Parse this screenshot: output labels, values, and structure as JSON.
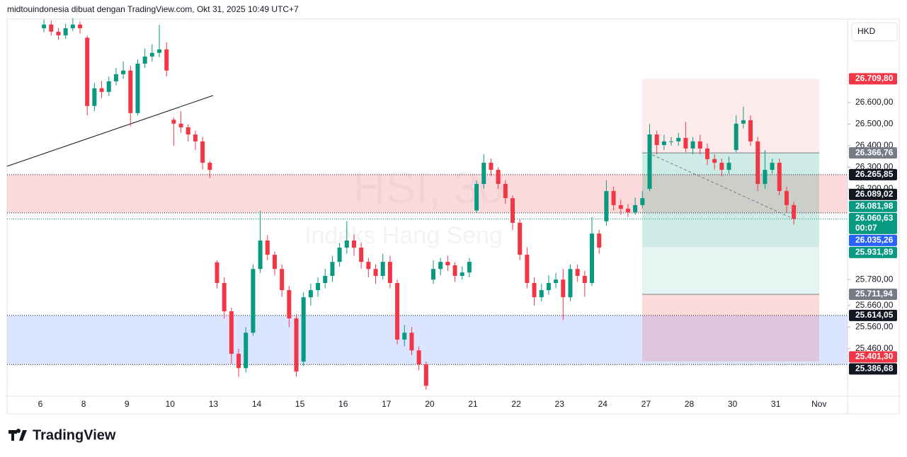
{
  "chart_data": {
    "type": "candlestick",
    "attribution": "midtouindonesia dibuat dengan TradingView.com, Okt 31, 2025 10:49 UTC+7",
    "currency": "HKD",
    "watermark": {
      "symbol": "HSI, 30",
      "name": "Indeks Hang Seng"
    },
    "logo": "TradingView",
    "up_color": "#089981",
    "down_color": "#f23645",
    "grid": false,
    "categories": [
      "6",
      null,
      null,
      null,
      null,
      null,
      "8",
      null,
      null,
      null,
      null,
      null,
      "9",
      null,
      null,
      null,
      null,
      null,
      "10",
      null,
      null,
      null,
      null,
      null,
      "13",
      null,
      null,
      null,
      null,
      null,
      "14",
      null,
      null,
      null,
      null,
      null,
      "15",
      null,
      null,
      null,
      null,
      null,
      "16",
      null,
      null,
      null,
      null,
      null,
      "17",
      null,
      null,
      null,
      null,
      null,
      "20",
      null,
      null,
      null,
      null,
      null,
      "21",
      null,
      null,
      null,
      null,
      null,
      "22",
      null,
      null,
      null,
      null,
      null,
      "23",
      null,
      null,
      null,
      null,
      null,
      "24",
      null,
      null,
      null,
      null,
      null,
      "27",
      null,
      null,
      null,
      null,
      null,
      "28",
      null,
      null,
      null,
      null,
      null,
      "30",
      null,
      null,
      null,
      null,
      null,
      "31",
      null,
      null,
      null,
      null,
      null,
      "Nov",
      null,
      null,
      null
    ],
    "open": [
      26944,
      26961,
      26928,
      26911,
      26944,
      26961,
      26900,
      26584,
      26666,
      26649,
      26698,
      26731,
      26748,
      26551,
      26780,
      26813,
      26830,
      26846,
      26520,
      26502,
      26485,
      26452,
      26420,
      26321,
      25860,
      25764,
      25633,
      25436,
      25370,
      25534,
      25829,
      25961,
      25895,
      25829,
      25731,
      25600,
      25400,
      25698,
      25731,
      25764,
      25797,
      25862,
      25928,
      25961,
      25928,
      25862,
      25829,
      25797,
      25862,
      25764,
      25502,
      25534,
      25452,
      25387,
      25780,
      25829,
      25862,
      25846,
      25797,
      25813,
      26100,
      26223,
      26321,
      26288,
      26223,
      26157,
      26043,
      25895,
      25764,
      25698,
      25731,
      25764,
      25780,
      25698,
      25829,
      25797,
      25764,
      25993,
      26050,
      26190,
      26125,
      26108,
      26092,
      26125,
      26200,
      26452,
      26403,
      26420,
      26420,
      26436,
      26387,
      26420,
      26387,
      26338,
      26321,
      26288,
      26380,
      26502,
      26518,
      26420,
      26223,
      26288,
      26321,
      26190,
      26125,
      null,
      null,
      null,
      null,
      null,
      null,
      null
    ],
    "high": [
      26985,
      26980,
      26945,
      26965,
      26990,
      26975,
      26910,
      26690,
      26700,
      26720,
      26760,
      26790,
      26770,
      26800,
      26850,
      26870,
      26960,
      26880,
      26530,
      26560,
      26500,
      26470,
      26440,
      26330,
      25870,
      25790,
      25650,
      25460,
      25560,
      25850,
      26098,
      25985,
      25910,
      25850,
      25750,
      25620,
      25720,
      25760,
      25790,
      25830,
      25890,
      25950,
      26050,
      25990,
      25950,
      25880,
      25850,
      25900,
      25890,
      25780,
      25570,
      25560,
      25470,
      25400,
      25870,
      25880,
      25890,
      25860,
      25840,
      25880,
      26240,
      26360,
      26340,
      26300,
      26240,
      26170,
      26060,
      25930,
      25790,
      25760,
      25800,
      25810,
      25830,
      25850,
      25850,
      25820,
      26070,
      26010,
      26240,
      26210,
      26150,
      26130,
      26160,
      26190,
      26500,
      26470,
      26450,
      26440,
      26460,
      26510,
      26440,
      26450,
      26410,
      26360,
      26340,
      26350,
      26540,
      26580,
      26540,
      26440,
      26380,
      26340,
      26340,
      26210,
      26140,
      null,
      null,
      null,
      null,
      null,
      null,
      null
    ],
    "low": [
      26925,
      26910,
      26890,
      26895,
      26930,
      26920,
      26540,
      26560,
      26620,
      26630,
      26680,
      26710,
      26490,
      26540,
      26760,
      26790,
      26810,
      26720,
      26400,
      26460,
      26420,
      26380,
      26290,
      26250,
      25740,
      25600,
      25390,
      25330,
      25350,
      25520,
      25810,
      25870,
      25800,
      25700,
      25560,
      25330,
      25380,
      25660,
      25700,
      25740,
      25770,
      25840,
      25900,
      25890,
      25830,
      25790,
      25760,
      25780,
      25740,
      25480,
      25470,
      25430,
      25360,
      25270,
      25760,
      25800,
      25820,
      25770,
      25780,
      25790,
      26090,
      26200,
      26260,
      26200,
      26130,
      26010,
      25870,
      25740,
      25660,
      25680,
      25710,
      25740,
      25593,
      25680,
      25770,
      25700,
      25750,
      25900,
      26030,
      26100,
      26080,
      26070,
      26080,
      26110,
      26190,
      26360,
      26380,
      26400,
      26400,
      26370,
      26360,
      26360,
      26310,
      26290,
      26260,
      26270,
      26370,
      26480,
      26400,
      26190,
      26200,
      26270,
      26170,
      26090,
      26035,
      null,
      null,
      null,
      null,
      null,
      null,
      null
    ],
    "close": [
      26961,
      26928,
      26911,
      26944,
      26961,
      26944,
      26584,
      26666,
      26649,
      26698,
      26731,
      26748,
      26551,
      26780,
      26813,
      26830,
      26846,
      26748,
      26502,
      26485,
      26452,
      26420,
      26321,
      26288,
      25764,
      25633,
      25436,
      25370,
      25534,
      25829,
      25961,
      25895,
      25829,
      25731,
      25600,
      25354,
      25698,
      25731,
      25764,
      25797,
      25862,
      25928,
      25961,
      25928,
      25862,
      25829,
      25797,
      25862,
      25764,
      25502,
      25534,
      25452,
      25387,
      25288,
      25829,
      25862,
      25846,
      25797,
      25813,
      25862,
      26223,
      26321,
      26288,
      26223,
      26157,
      26043,
      25895,
      25764,
      25698,
      25731,
      25764,
      25780,
      25698,
      25829,
      25797,
      25764,
      25993,
      25928,
      26190,
      26125,
      26108,
      26092,
      26125,
      26157,
      26452,
      26403,
      26420,
      26420,
      26436,
      26387,
      26420,
      26387,
      26338,
      26321,
      26288,
      26321,
      26502,
      26518,
      26420,
      26223,
      26288,
      26321,
      26190,
      26125,
      26060.63,
      null,
      null,
      null,
      null,
      null,
      null,
      null
    ],
    "ylim": [
      25240,
      26983
    ],
    "yticks": [
      {
        "value": 26600,
        "label": "26.600,00"
      },
      {
        "value": 26500,
        "label": "26.500,00"
      },
      {
        "value": 26400,
        "label": "26.400,00"
      },
      {
        "value": 26300,
        "label": "26.300,00"
      },
      {
        "value": 26200,
        "label": "26.200,00"
      },
      {
        "value": 25780,
        "label": "25.780,00"
      },
      {
        "value": 25660,
        "label": "25.660,00"
      },
      {
        "value": 25560,
        "label": "25.560,00"
      },
      {
        "value": 25460,
        "label": "25.460,00"
      }
    ],
    "price_labels": [
      {
        "value": 26709.8,
        "label": "26.709,80",
        "color": "#f23645"
      },
      {
        "value": 26366.76,
        "label": "26.366,76",
        "color": "#787b86"
      },
      {
        "value": 26265.85,
        "label": "26.265,85",
        "color": "#131722"
      },
      {
        "value": 26089.02,
        "label": "26.089,02",
        "color": "#131722"
      },
      {
        "value": 26081.98,
        "label": "26.081,98",
        "color": "#089981"
      },
      {
        "value": 26060.63,
        "label": "26.060,63",
        "sublabel": "00:07",
        "color": "#089981"
      },
      {
        "value": 26035.26,
        "label": "26.035,26",
        "color": "#2962ff"
      },
      {
        "value": 25931.89,
        "label": "25.931,89",
        "color": "#089981"
      },
      {
        "value": 25711.94,
        "label": "25.711,94",
        "color": "#787b86"
      },
      {
        "value": 25614.05,
        "label": "25.614,05",
        "color": "#131722"
      },
      {
        "value": 25401.3,
        "label": "25.401,30",
        "color": "#f23645"
      },
      {
        "value": 25386.68,
        "label": "25.386,68",
        "color": "#131722"
      }
    ]
  }
}
